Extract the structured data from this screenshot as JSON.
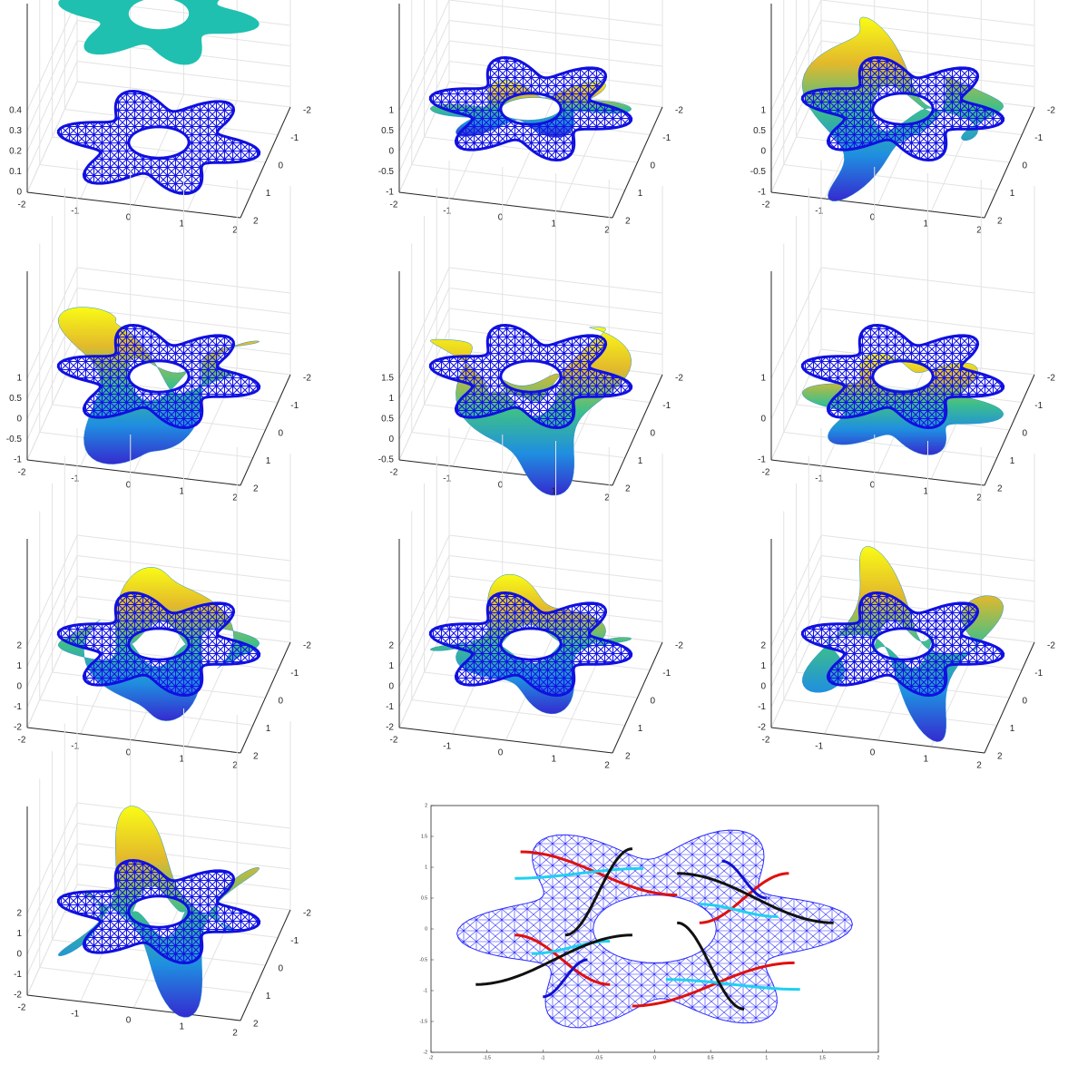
{
  "panels": [
    {
      "zticks": [
        0,
        0.1,
        0.2,
        0.3,
        0.4
      ],
      "xticks": [
        -2,
        -1,
        0,
        1,
        2
      ],
      "yticks": [
        -2,
        -1,
        0,
        1,
        2
      ]
    },
    {
      "zticks": [
        -1,
        -0.5,
        0,
        0.5,
        1
      ],
      "xticks": [
        -2,
        -1,
        0,
        1,
        2
      ],
      "yticks": [
        -2,
        -1,
        0,
        1,
        2
      ]
    },
    {
      "zticks": [
        -1,
        -0.5,
        0,
        0.5,
        1
      ],
      "xticks": [
        -2,
        -1,
        0,
        1,
        2
      ],
      "yticks": [
        -2,
        -1,
        0,
        1,
        2
      ]
    },
    {
      "zticks": [
        -1,
        -0.5,
        0,
        0.5,
        1
      ],
      "xticks": [
        -2,
        -1,
        0,
        1,
        2
      ],
      "yticks": [
        -2,
        -1,
        0,
        1,
        2
      ]
    },
    {
      "zticks": [
        -0.5,
        0,
        0.5,
        1,
        1.5
      ],
      "xticks": [
        -2,
        -1,
        0,
        1,
        2
      ],
      "yticks": [
        -2,
        -1,
        0,
        1,
        2
      ]
    },
    {
      "zticks": [
        -1,
        0,
        1
      ],
      "xticks": [
        -2,
        -1,
        0,
        1,
        2
      ],
      "yticks": [
        -2,
        -1,
        0,
        1,
        2
      ]
    },
    {
      "zticks": [
        -2,
        -1,
        0,
        1,
        2
      ],
      "xticks": [
        -2,
        -1,
        0,
        1,
        2
      ],
      "yticks": [
        -2,
        -1,
        0,
        1,
        2
      ]
    },
    {
      "zticks": [
        -2,
        -1,
        0,
        1,
        2
      ],
      "xticks": [
        -2,
        -1,
        0,
        1,
        2
      ],
      "yticks": [
        -2,
        -1,
        0,
        1,
        2
      ]
    },
    {
      "zticks": [
        -2,
        -1,
        0,
        1,
        2
      ],
      "xticks": [
        -2,
        -1,
        0,
        1,
        2
      ],
      "yticks": [
        -2,
        -1,
        0,
        1,
        2
      ]
    },
    {
      "zticks": [
        -2,
        -1,
        0,
        1,
        2
      ],
      "xticks": [
        -2,
        -1,
        0,
        1,
        2
      ],
      "yticks": [
        -2,
        -1,
        0,
        1,
        2
      ]
    }
  ],
  "mesh_plot": {
    "xticks": [
      -2,
      -1.5,
      -1,
      -0.5,
      0,
      0.5,
      1,
      1.5,
      2
    ],
    "yticks": [
      -2,
      -1.5,
      -1,
      -0.5,
      0,
      0.5,
      1,
      1.5,
      2
    ]
  }
}
